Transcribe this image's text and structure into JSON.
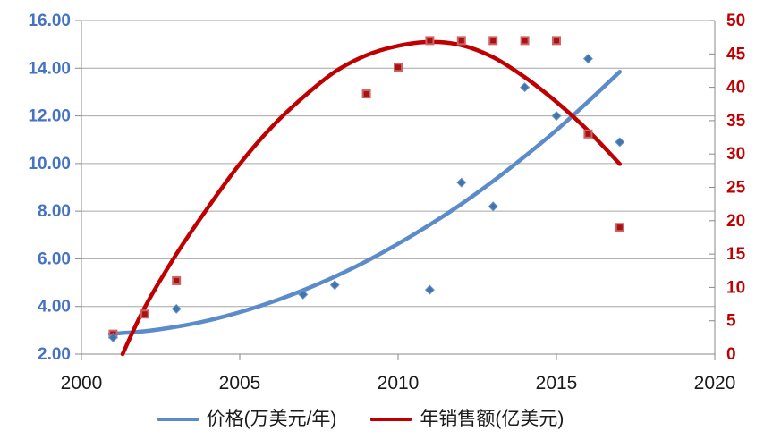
{
  "chart_data": {
    "type": "scatter",
    "title": "",
    "x_axis": {
      "min": 2000,
      "max": 2020,
      "ticks": [
        2000,
        2005,
        2010,
        2015,
        2020
      ]
    },
    "y_left_axis": {
      "min": 2,
      "max": 16,
      "ticks": [
        2,
        4,
        6,
        8,
        10,
        12,
        14,
        16
      ],
      "decimals": 2,
      "label_color": "#4472C4"
    },
    "y_right_axis": {
      "min": 0,
      "max": 50,
      "ticks": [
        0,
        5,
        10,
        15,
        20,
        25,
        30,
        35,
        40,
        45,
        50
      ],
      "decimals": 0,
      "label_color": "#C00000"
    },
    "grid": true,
    "legend_position": "bottom",
    "series": [
      {
        "name": "价格(万美元/年)",
        "axis": "left",
        "marker": "diamond",
        "points": [
          [
            2001,
            2.7
          ],
          [
            2003,
            3.9
          ],
          [
            2007,
            4.5
          ],
          [
            2008,
            4.9
          ],
          [
            2011,
            4.7
          ],
          [
            2012,
            9.2
          ],
          [
            2013,
            8.2
          ],
          [
            2014,
            13.2
          ],
          [
            2015,
            12.0
          ],
          [
            2016,
            14.4
          ],
          [
            2017,
            10.9
          ]
        ],
        "trendline": [
          [
            2000.9,
            2.85
          ],
          [
            2002,
            2.96
          ],
          [
            2003,
            3.15
          ],
          [
            2004,
            3.41
          ],
          [
            2005,
            3.76
          ],
          [
            2006,
            4.18
          ],
          [
            2007,
            4.68
          ],
          [
            2008,
            5.25
          ],
          [
            2009,
            5.9
          ],
          [
            2010,
            6.63
          ],
          [
            2011,
            7.43
          ],
          [
            2012,
            8.3
          ],
          [
            2013,
            9.26
          ],
          [
            2014,
            10.3
          ],
          [
            2015,
            11.4
          ],
          [
            2016,
            12.6
          ],
          [
            2017,
            13.85
          ]
        ]
      },
      {
        "name": "年销售额(亿美元)",
        "axis": "right",
        "marker": "square",
        "points": [
          [
            2001,
            3
          ],
          [
            2002,
            6
          ],
          [
            2003,
            11
          ],
          [
            2009,
            39
          ],
          [
            2010,
            43
          ],
          [
            2011,
            47
          ],
          [
            2012,
            47
          ],
          [
            2013,
            47
          ],
          [
            2014,
            47
          ],
          [
            2015,
            47
          ],
          [
            2016,
            33
          ],
          [
            2017,
            19
          ]
        ],
        "trendline": [
          [
            2001.3,
            0
          ],
          [
            2002,
            7
          ],
          [
            2003,
            15
          ],
          [
            2004,
            22
          ],
          [
            2005,
            28.5
          ],
          [
            2006,
            34
          ],
          [
            2007,
            38.5
          ],
          [
            2008,
            42.3
          ],
          [
            2009,
            44.8
          ],
          [
            2010,
            46.2
          ],
          [
            2011,
            46.8
          ],
          [
            2012,
            46.3
          ],
          [
            2013,
            44.5
          ],
          [
            2014,
            41.5
          ],
          [
            2015,
            37.8
          ],
          [
            2016,
            33.5
          ],
          [
            2017,
            28.5
          ]
        ]
      }
    ],
    "colors": {
      "background": "#FFFFFF",
      "gridline": "#A6A6A6",
      "axis_line": "#898989",
      "x_label": "#1A1A1A",
      "left_label": "#4472C4",
      "right_label": "#C00000",
      "price_line": "#5B8CC9",
      "price_marker_fill": "#4173AE",
      "price_marker_edge": "#6C95C6",
      "sales_line": "#C00000",
      "sales_marker_fill": "#A81212",
      "sales_marker_edge": "#CE6363"
    }
  }
}
